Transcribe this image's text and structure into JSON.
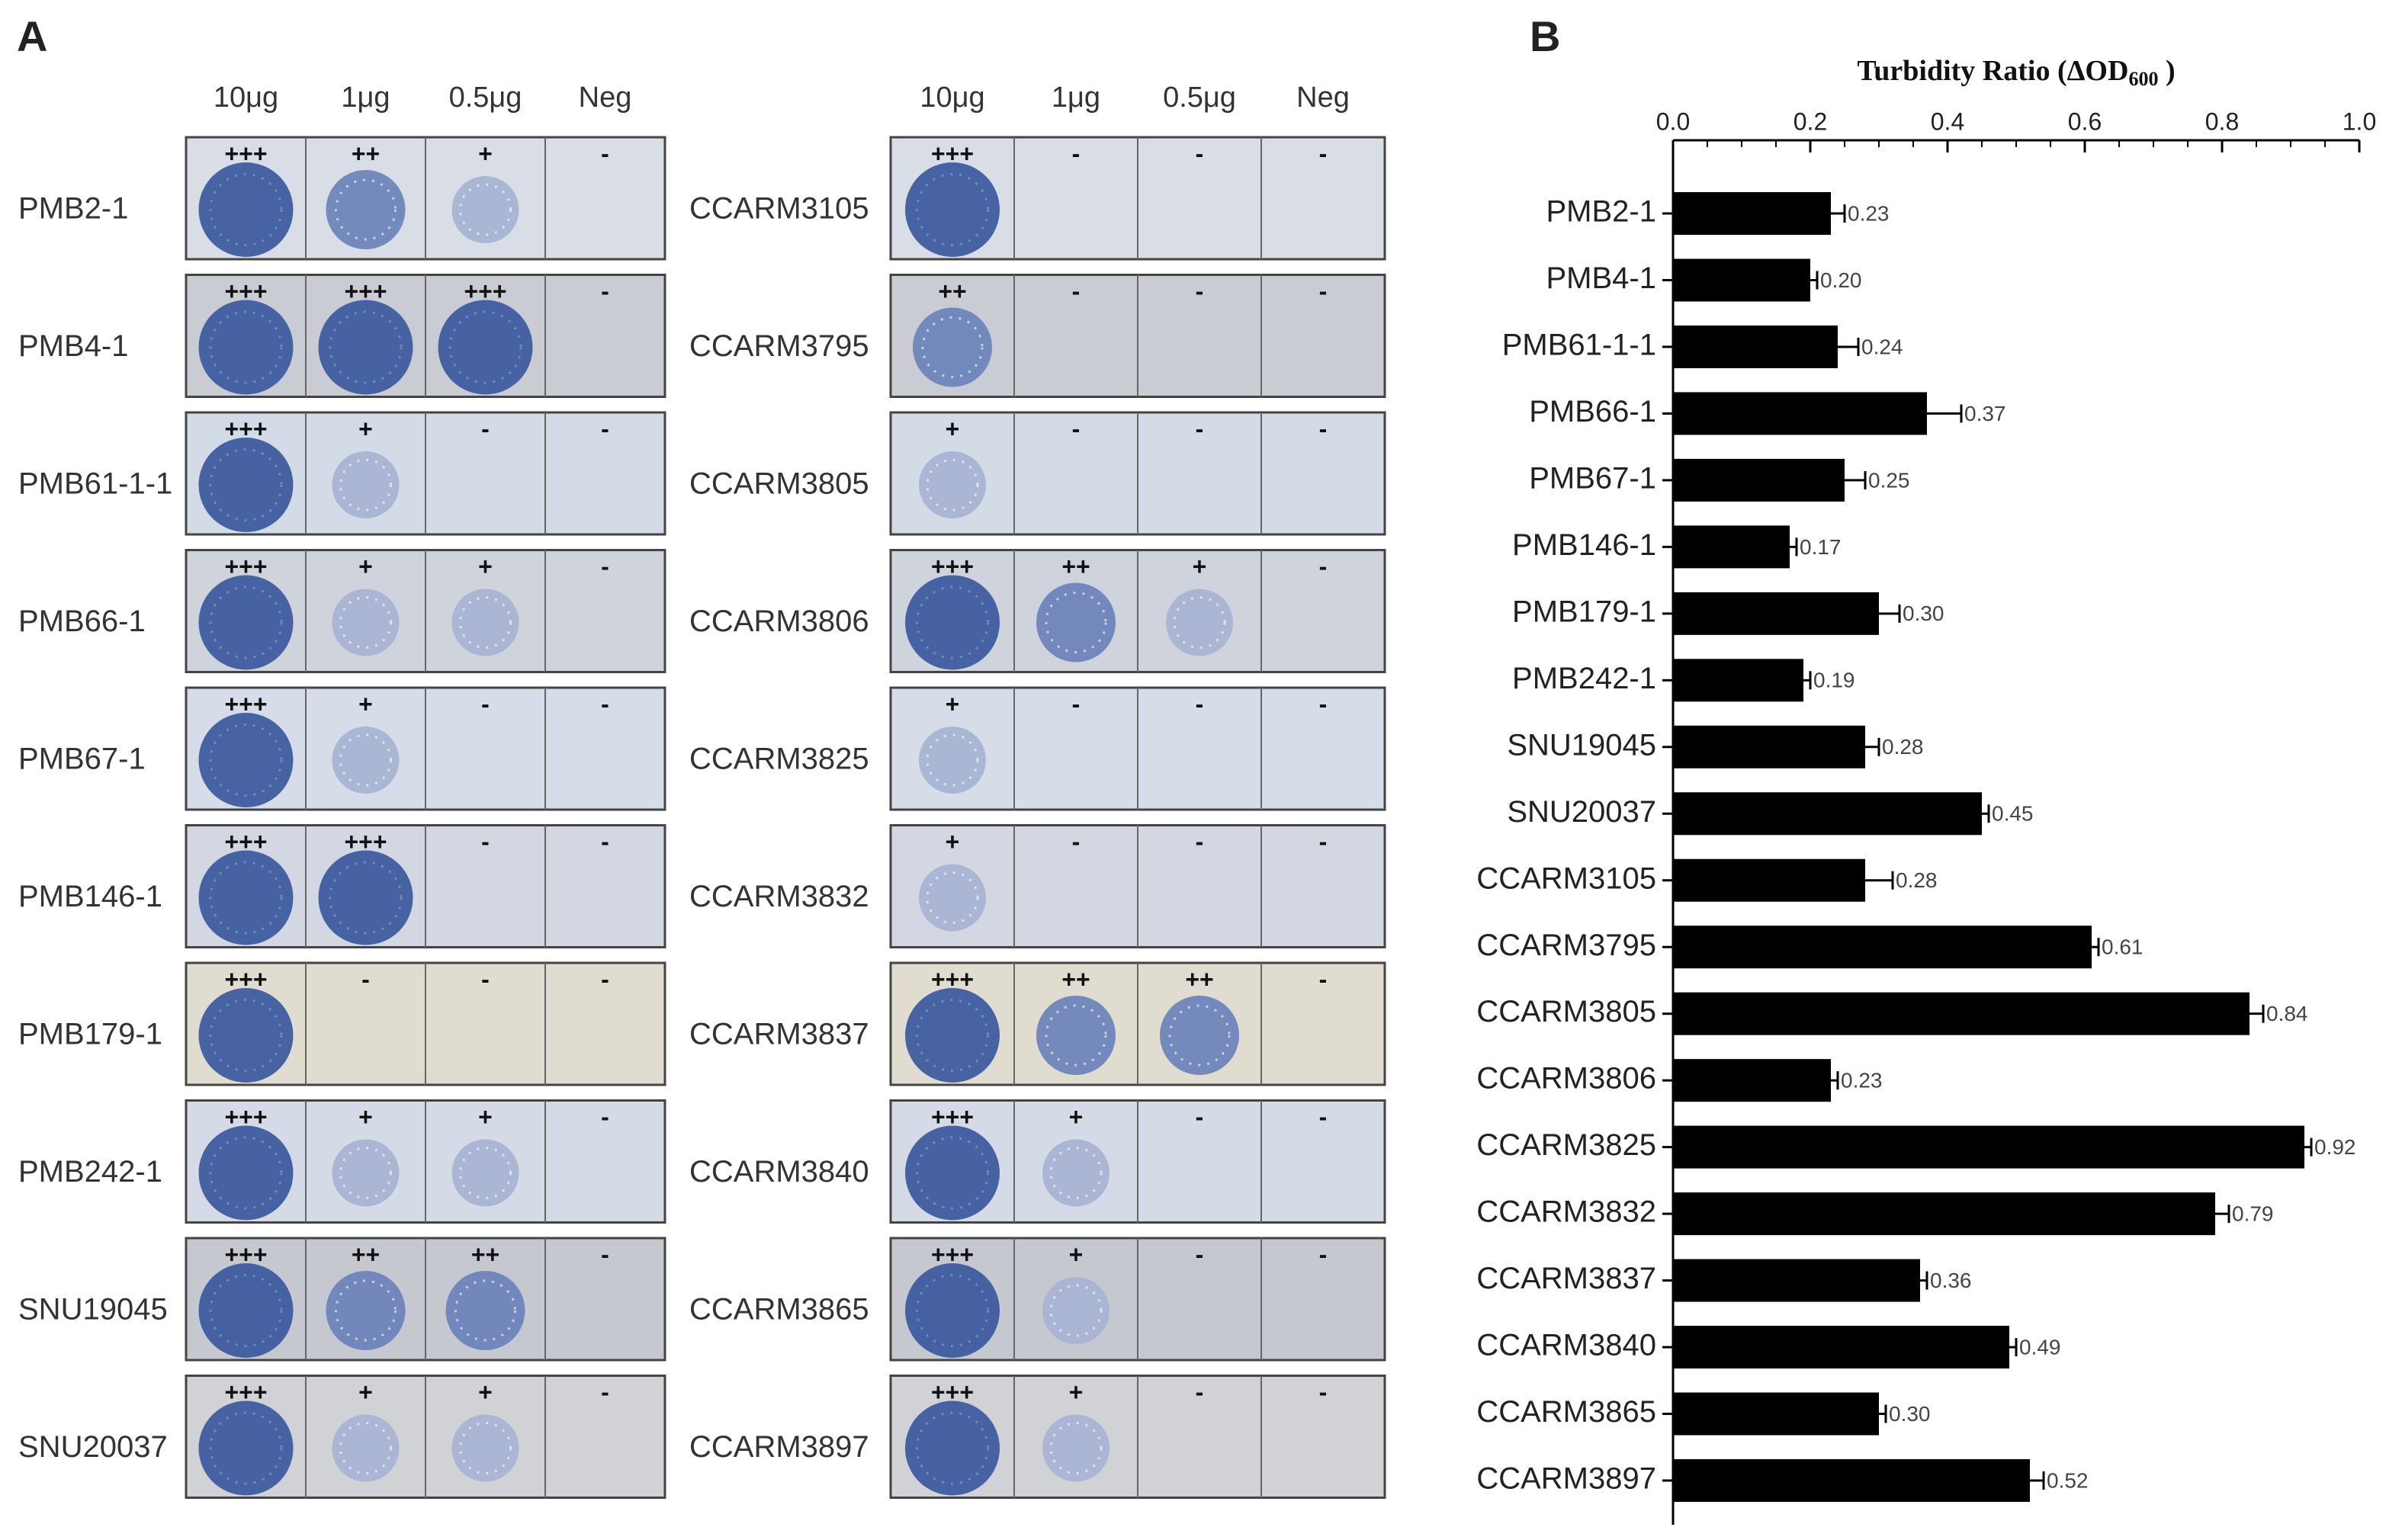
{
  "panel_a": {
    "label": "A",
    "groups": [
      {
        "column_headers": [
          "10μg",
          "1μg",
          "0.5μg",
          "Neg"
        ],
        "rows": [
          {
            "name": "PMB2-1",
            "scores": [
              "+++",
              "++",
              "+",
              "-"
            ]
          },
          {
            "name": "PMB4-1",
            "scores": [
              "+++",
              "+++",
              "+++",
              "-"
            ]
          },
          {
            "name": "PMB61-1-1",
            "scores": [
              "+++",
              "+",
              "-",
              "-"
            ]
          },
          {
            "name": "PMB66-1",
            "scores": [
              "+++",
              "+",
              "+",
              "-"
            ]
          },
          {
            "name": "PMB67-1",
            "scores": [
              "+++",
              "+",
              "-",
              "-"
            ]
          },
          {
            "name": "PMB146-1",
            "scores": [
              "+++",
              "+++",
              "-",
              "-"
            ]
          },
          {
            "name": "PMB179-1",
            "scores": [
              "+++",
              "-",
              "-",
              "-"
            ]
          },
          {
            "name": "PMB242-1",
            "scores": [
              "+++",
              "+",
              "+",
              "-"
            ]
          },
          {
            "name": "SNU19045",
            "scores": [
              "+++",
              "++",
              "++",
              "-"
            ]
          },
          {
            "name": "SNU20037",
            "scores": [
              "+++",
              "+",
              "+",
              "-"
            ]
          }
        ]
      },
      {
        "column_headers": [
          "10μg",
          "1μg",
          "0.5μg",
          "Neg"
        ],
        "rows": [
          {
            "name": "CCARM3105",
            "scores": [
              "+++",
              "-",
              "-",
              "-"
            ]
          },
          {
            "name": "CCARM3795",
            "scores": [
              "++",
              "-",
              "-",
              "-"
            ]
          },
          {
            "name": "CCARM3805",
            "scores": [
              "+",
              "-",
              "-",
              "-"
            ]
          },
          {
            "name": "CCARM3806",
            "scores": [
              "+++",
              "++",
              "+",
              "-"
            ]
          },
          {
            "name": "CCARM3825",
            "scores": [
              "+",
              "-",
              "-",
              "-"
            ]
          },
          {
            "name": "CCARM3832",
            "scores": [
              "+",
              "-",
              "-",
              "-"
            ]
          },
          {
            "name": "CCARM3837",
            "scores": [
              "+++",
              "++",
              "++",
              "-"
            ]
          },
          {
            "name": "CCARM3840",
            "scores": [
              "+++",
              "+",
              "-",
              "-"
            ]
          },
          {
            "name": "CCARM3865",
            "scores": [
              "+++",
              "+",
              "-",
              "-"
            ]
          },
          {
            "name": "CCARM3897",
            "scores": [
              "+++",
              "+",
              "-",
              "-"
            ]
          }
        ]
      }
    ]
  },
  "panel_b": {
    "label": "B"
  },
  "chart_data": {
    "type": "bar",
    "orientation": "horizontal",
    "title": {
      "main": "Turbidity Ratio (ΔOD",
      "sub": "600",
      "end": " )"
    },
    "categories": [
      "PMB2-1",
      "PMB4-1",
      "PMB61-1-1",
      "PMB66-1",
      "PMB67-1",
      "PMB146-1",
      "PMB179-1",
      "PMB242-1",
      "SNU19045",
      "SNU20037",
      "CCARM3105",
      "CCARM3795",
      "CCARM3805",
      "CCARM3806",
      "CCARM3825",
      "CCARM3832",
      "CCARM3837",
      "CCARM3840",
      "CCARM3865",
      "CCARM3897"
    ],
    "values": [
      0.23,
      0.2,
      0.24,
      0.37,
      0.25,
      0.17,
      0.3,
      0.19,
      0.28,
      0.45,
      0.28,
      0.61,
      0.84,
      0.23,
      0.92,
      0.79,
      0.36,
      0.49,
      0.3,
      0.52
    ],
    "value_labels": [
      "0.23",
      "0.20",
      "0.24",
      "0.37",
      "0.25",
      "0.17",
      "0.30",
      "0.19",
      "0.28",
      "0.45",
      "0.28",
      "0.61",
      "0.84",
      "0.23",
      "0.92",
      "0.79",
      "0.36",
      "0.49",
      "0.30",
      "0.52"
    ],
    "errors": [
      0.02,
      0.01,
      0.03,
      0.05,
      0.03,
      0.01,
      0.03,
      0.01,
      0.02,
      0.01,
      0.04,
      0.01,
      0.02,
      0.01,
      0.01,
      0.02,
      0.01,
      0.01,
      0.01,
      0.02
    ],
    "color": "#000000",
    "xlim": [
      0,
      1
    ],
    "xticks": [
      {
        "value": 0,
        "label": "0.0"
      },
      0.2,
      0.4,
      0.6,
      0.8,
      {
        "value": 1,
        "label": "1.0"
      }
    ],
    "xminorticks": [
      0.05,
      0.1,
      0.15,
      0.25,
      0.3,
      0.35,
      0.45,
      0.5,
      0.55,
      0.65,
      0.7,
      0.75,
      0.85,
      0.9,
      0.95
    ]
  }
}
